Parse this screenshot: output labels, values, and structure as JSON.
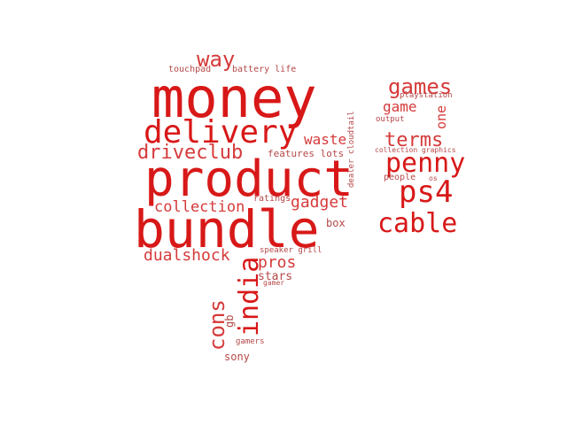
{
  "colors": {
    "strong": "#d81818",
    "medium": "#d63a3a",
    "light": "#b54848",
    "background": "#ffffff"
  },
  "words": {
    "money": "money",
    "product": "product",
    "bundle": "bundle",
    "delivery": "delivery",
    "driveclub": "driveclub",
    "way": "way",
    "touchpad": "touchpad",
    "battery_life": "battery life",
    "waste": "waste",
    "features_lots": "features lots",
    "collection": "collection",
    "ratings": "ratings",
    "gadget": "gadget",
    "box": "box",
    "dualshock": "dualshock",
    "pros": "pros",
    "speaker_grill": "speaker grill",
    "stars": "stars",
    "gamer": "gamer",
    "india": "india",
    "cons": "cons",
    "gb": "gb",
    "gamers": "gamers",
    "sony": "sony",
    "dealer_cloudtail": "dealer cloudtail",
    "games": "games",
    "playstation": "playstation",
    "game": "game",
    "one": "one",
    "output": "output",
    "terms": "terms",
    "collection_graphics": "collection graphics",
    "penny": "penny",
    "people": "people",
    "os": "os",
    "ps4": "ps4",
    "cable": "cable"
  }
}
